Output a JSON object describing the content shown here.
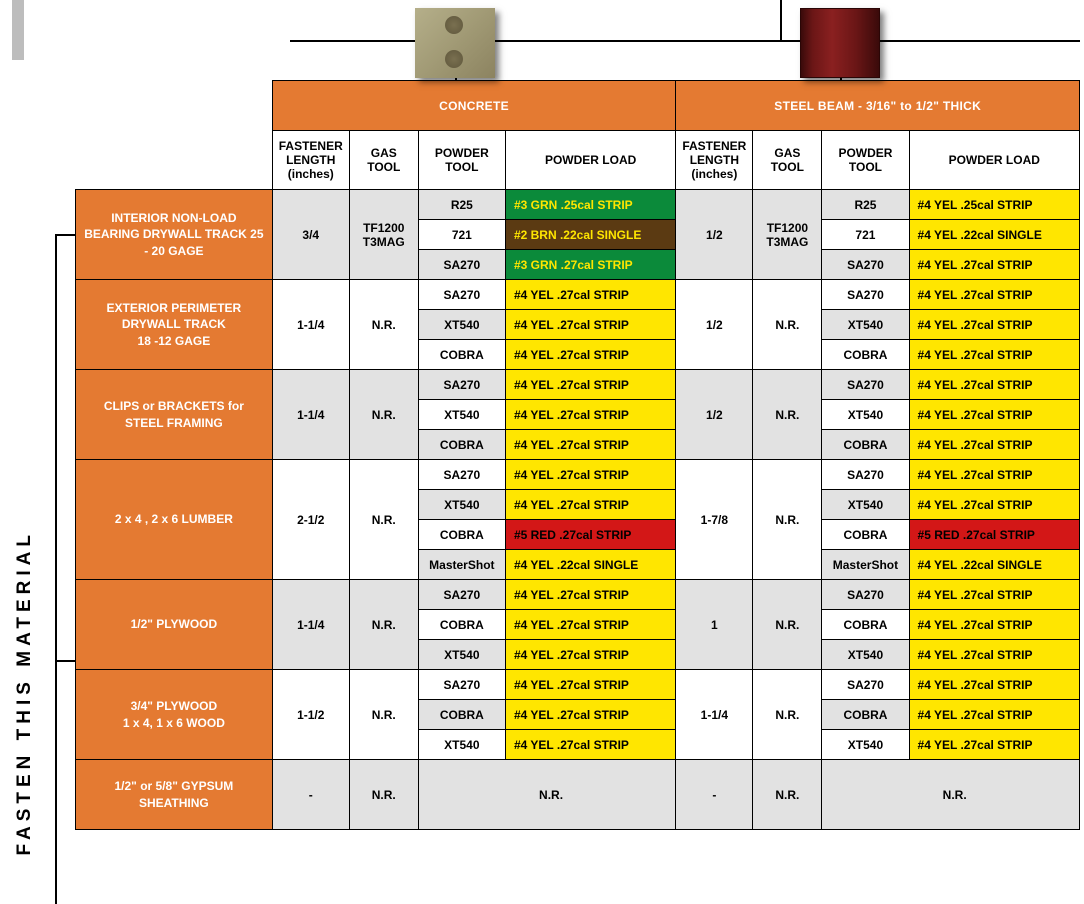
{
  "colors": {
    "header_orange": "#e47a32",
    "yellow": "#ffe600",
    "green": "#0b8a3a",
    "brown": "#5b3a12",
    "red": "#d31717",
    "shade": "#e2e2e2",
    "white": "#ffffff",
    "black": "#000000"
  },
  "side_label": "FASTEN THIS MATERIAL",
  "category_headers": {
    "concrete": "CONCRETE",
    "steel": "STEEL BEAM - 3/16\" to 1/2\" THICK"
  },
  "column_headers": {
    "fastener": "FASTENER LENGTH (inches)",
    "gas": "GAS TOOL",
    "powder_tool": "POWDER TOOL",
    "powder_load": "POWDER LOAD"
  },
  "rows": [
    {
      "label": "INTERIOR NON-LOAD BEARING DRYWALL TRACK  25 - 20 GAGE",
      "shade": true,
      "concrete": {
        "fastener": "3/4",
        "gas": "TF1200 T3MAG",
        "tools": [
          {
            "tool": "R25",
            "load": "#3 GRN .25cal STRIP",
            "load_class": "grn"
          },
          {
            "tool": "721",
            "load": "#2 BRN .22cal SINGLE",
            "load_class": "brn"
          },
          {
            "tool": "SA270",
            "load": "#3 GRN .27cal STRIP",
            "load_class": "grn"
          }
        ]
      },
      "steel": {
        "fastener": "1/2",
        "gas": "TF1200 T3MAG",
        "tools": [
          {
            "tool": "R25",
            "load": "#4 YEL .25cal STRIP",
            "load_class": "yel"
          },
          {
            "tool": "721",
            "load": "#4 YEL .22cal SINGLE",
            "load_class": "yel"
          },
          {
            "tool": "SA270",
            "load": "#4 YEL .27cal STRIP",
            "load_class": "yel"
          }
        ]
      }
    },
    {
      "label": "EXTERIOR PERIMETER DRYWALL TRACK<br>18 -12 GAGE",
      "shade": false,
      "concrete": {
        "fastener": "1-1/4",
        "gas": "N.R.",
        "tools": [
          {
            "tool": "SA270",
            "load": "#4 YEL .27cal STRIP",
            "load_class": "yel"
          },
          {
            "tool": "XT540",
            "load": "#4 YEL .27cal STRIP",
            "load_class": "yel"
          },
          {
            "tool": "COBRA",
            "load": "#4 YEL .27cal STRIP",
            "load_class": "yel"
          }
        ]
      },
      "steel": {
        "fastener": "1/2",
        "gas": "N.R.",
        "tools": [
          {
            "tool": "SA270",
            "load": "#4 YEL .27cal STRIP",
            "load_class": "yel"
          },
          {
            "tool": "XT540",
            "load": "#4 YEL .27cal STRIP",
            "load_class": "yel"
          },
          {
            "tool": "COBRA",
            "load": "#4 YEL .27cal STRIP",
            "load_class": "yel"
          }
        ]
      }
    },
    {
      "label": "CLIPS or BRACKETS for STEEL FRAMING",
      "shade": true,
      "concrete": {
        "fastener": "1-1/4",
        "gas": "N.R.",
        "tools": [
          {
            "tool": "SA270",
            "load": "#4 YEL .27cal STRIP",
            "load_class": "yel"
          },
          {
            "tool": "XT540",
            "load": "#4 YEL .27cal STRIP",
            "load_class": "yel"
          },
          {
            "tool": "COBRA",
            "load": "#4 YEL .27cal STRIP",
            "load_class": "yel"
          }
        ]
      },
      "steel": {
        "fastener": "1/2",
        "gas": "N.R.",
        "tools": [
          {
            "tool": "SA270",
            "load": "#4 YEL .27cal STRIP",
            "load_class": "yel"
          },
          {
            "tool": "XT540",
            "load": "#4 YEL .27cal STRIP",
            "load_class": "yel"
          },
          {
            "tool": "COBRA",
            "load": "#4 YEL .27cal STRIP",
            "load_class": "yel"
          }
        ]
      }
    },
    {
      "label": "2 x 4 , 2 x 6  LUMBER",
      "shade": false,
      "concrete": {
        "fastener": "2-1/2",
        "gas": "N.R.",
        "tools": [
          {
            "tool": "SA270",
            "load": "#4 YEL .27cal STRIP",
            "load_class": "yel"
          },
          {
            "tool": "XT540",
            "load": "#4 YEL .27cal STRIP",
            "load_class": "yel"
          },
          {
            "tool": "COBRA",
            "load": "#5 RED .27cal STRIP",
            "load_class": "red"
          },
          {
            "tool": "MasterShot",
            "load": "#4 YEL .22cal SINGLE",
            "load_class": "yel"
          }
        ]
      },
      "steel": {
        "fastener": "1-7/8",
        "gas": "N.R.",
        "tools": [
          {
            "tool": "SA270",
            "load": "#4 YEL .27cal STRIP",
            "load_class": "yel"
          },
          {
            "tool": "XT540",
            "load": "#4 YEL .27cal STRIP",
            "load_class": "yel"
          },
          {
            "tool": "COBRA",
            "load": "#5 RED .27cal STRIP",
            "load_class": "red"
          },
          {
            "tool": "MasterShot",
            "load": "#4 YEL .22cal SINGLE",
            "load_class": "yel"
          }
        ]
      }
    },
    {
      "label": "1/2\" PLYWOOD",
      "shade": true,
      "concrete": {
        "fastener": "1-1/4",
        "gas": "N.R.",
        "tools": [
          {
            "tool": "SA270",
            "load": "#4 YEL .27cal STRIP",
            "load_class": "yel"
          },
          {
            "tool": "COBRA",
            "load": "#4 YEL .27cal STRIP",
            "load_class": "yel"
          },
          {
            "tool": "XT540",
            "load": "#4 YEL .27cal STRIP",
            "load_class": "yel"
          }
        ]
      },
      "steel": {
        "fastener": "1",
        "gas": "N.R.",
        "tools": [
          {
            "tool": "SA270",
            "load": "#4 YEL .27cal STRIP",
            "load_class": "yel"
          },
          {
            "tool": "COBRA",
            "load": "#4 YEL .27cal STRIP",
            "load_class": "yel"
          },
          {
            "tool": "XT540",
            "load": "#4 YEL .27cal STRIP",
            "load_class": "yel"
          }
        ]
      }
    },
    {
      "label": "3/4\" PLYWOOD<br>1 x 4,  1 x 6  WOOD",
      "shade": false,
      "concrete": {
        "fastener": "1-1/2",
        "gas": "N.R.",
        "tools": [
          {
            "tool": "SA270",
            "load": "#4 YEL .27cal STRIP",
            "load_class": "yel"
          },
          {
            "tool": "COBRA",
            "load": "#4 YEL .27cal STRIP",
            "load_class": "yel"
          },
          {
            "tool": "XT540",
            "load": "#4 YEL .27cal STRIP",
            "load_class": "yel"
          }
        ]
      },
      "steel": {
        "fastener": "1-1/4",
        "gas": "N.R.",
        "tools": [
          {
            "tool": "SA270",
            "load": "#4 YEL .27cal STRIP",
            "load_class": "yel"
          },
          {
            "tool": "COBRA",
            "load": "#4 YEL .27cal STRIP",
            "load_class": "yel"
          },
          {
            "tool": "XT540",
            "load": "#4 YEL .27cal STRIP",
            "load_class": "yel"
          }
        ]
      }
    },
    {
      "label": "1/2\" or 5/8\" GYPSUM SHEATHING",
      "shade": true,
      "concrete": {
        "fastener": "-",
        "gas": "N.R.",
        "nr": true
      },
      "steel": {
        "fastener": "-",
        "gas": "N.R.",
        "nr": true
      },
      "height": 70
    }
  ],
  "column_widths": {
    "rowlabel": 194,
    "fastener": 76,
    "gas": 68,
    "ptool": 86,
    "pload": 168
  },
  "nr_text": "N.R."
}
